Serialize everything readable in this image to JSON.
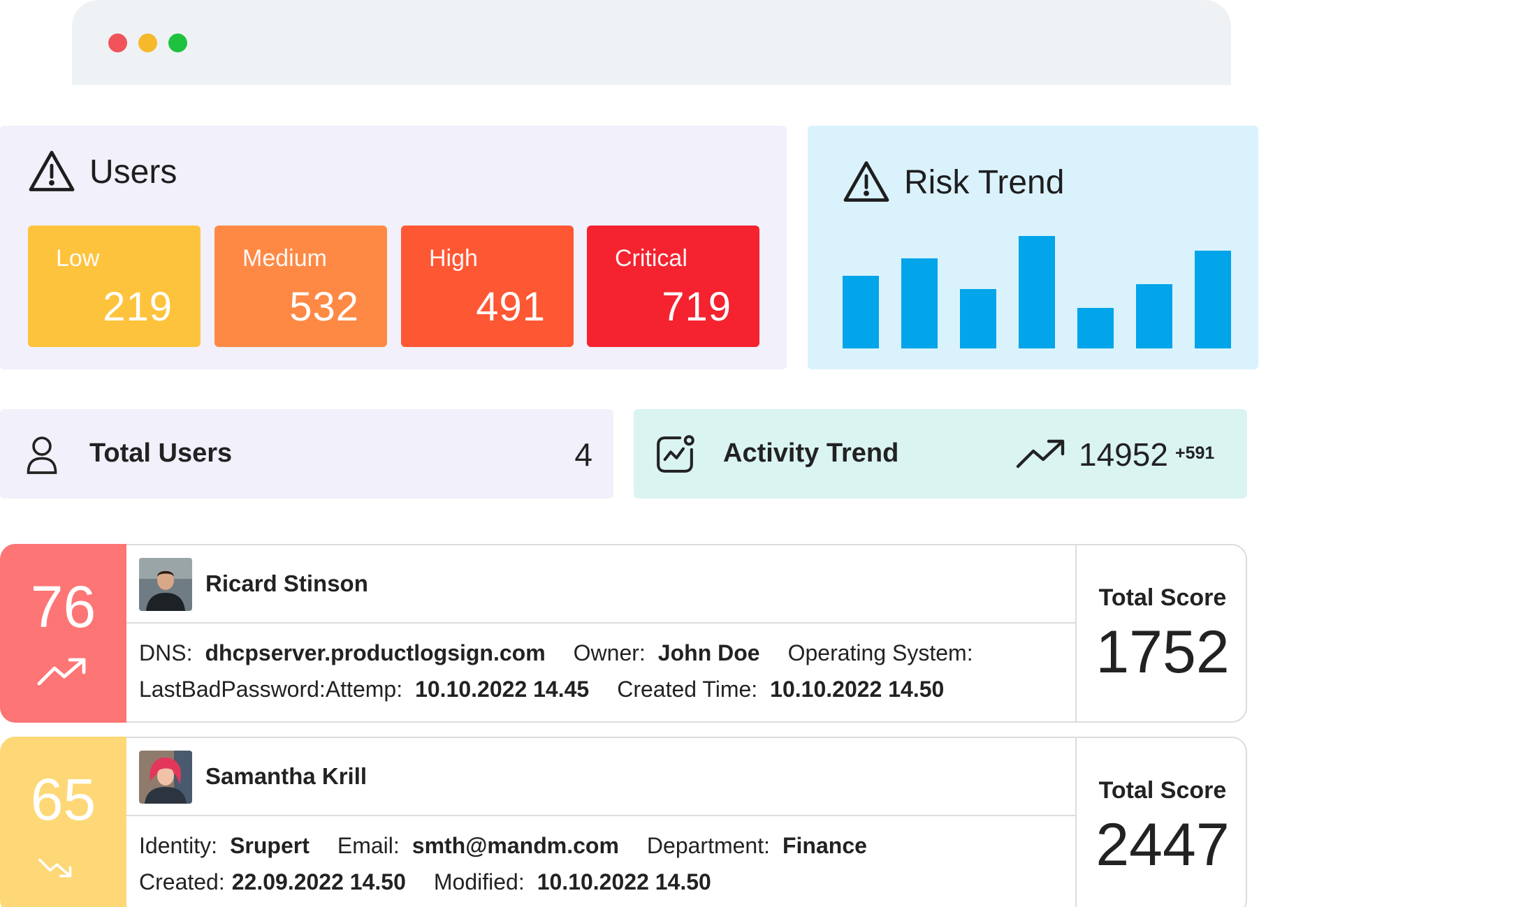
{
  "colors": {
    "window_red": "#f0535a",
    "window_yellow": "#f5b92b",
    "window_green": "#1fc23e",
    "low": "#fec33c",
    "medium": "#fe8945",
    "high": "#fe5734",
    "critical": "#f5222f",
    "bar": "#02a4ea",
    "score_red": "#fd7575",
    "score_yellow": "#fed877"
  },
  "window": {
    "controls": [
      "close-icon",
      "minimize-icon",
      "maximize-icon"
    ]
  },
  "users_card": {
    "title": "Users",
    "icon": "warning-icon",
    "tiles": [
      {
        "label": "Low",
        "value": "219"
      },
      {
        "label": "Medium",
        "value": "532"
      },
      {
        "label": "High",
        "value": "491"
      },
      {
        "label": "Critical",
        "value": "719"
      }
    ]
  },
  "risk_trend": {
    "title": "Risk Trend",
    "icon": "warning-icon",
    "bars": [
      0.45,
      0.56,
      0.37,
      0.7,
      0.25,
      0.4,
      0.61
    ]
  },
  "total_users": {
    "icon": "user-icon",
    "label": "Total Users",
    "value": "4"
  },
  "activity_trend": {
    "icon": "activity-chart-icon",
    "label": "Activity Trend",
    "trend_icon": "trending-up-icon",
    "value": "14952",
    "delta": "+591"
  },
  "records": [
    {
      "score": "76",
      "trend_icon": "trending-up-icon",
      "name": "Ricard Stinson",
      "line1": [
        {
          "k": "DNS:",
          "v": "dhcpserver.productlogsign.com"
        },
        {
          "k": "Owner:",
          "v": "John Doe"
        },
        {
          "k": "Operating System:",
          "v": ""
        }
      ],
      "line2": [
        {
          "k": "LastBadPassword:Attemp:",
          "v": "10.10.2022 14.45"
        },
        {
          "k": "Created Time:",
          "v": "10.10.2022 14.50"
        }
      ],
      "total_label": "Total Score",
      "total_value": "1752"
    },
    {
      "score": "65",
      "trend_icon": "trending-down-icon",
      "name": "Samantha Krill",
      "line1": [
        {
          "k": "Identity:",
          "v": "Srupert"
        },
        {
          "k": "Email:",
          "v": "smth@mandm.com"
        },
        {
          "k": "Department:",
          "v": "Finance"
        }
      ],
      "line2": [
        {
          "k": "Created:",
          "v": "22.09.2022 14.50"
        },
        {
          "k": "Modified:",
          "v": "10.10.2022 14.50"
        }
      ],
      "total_label": "Total Score",
      "total_value": "2447"
    }
  ]
}
